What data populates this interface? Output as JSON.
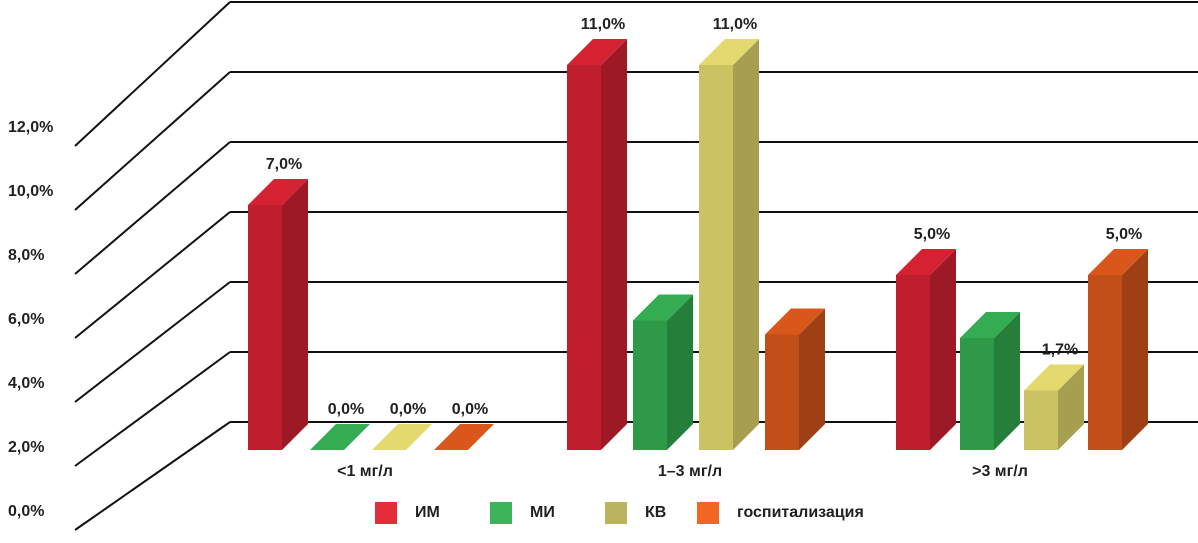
{
  "chart_data": {
    "type": "bar3d",
    "categories": [
      "<1 мг/л",
      "1–3 мг/л",
      ">3 мг/л"
    ],
    "series": [
      {
        "name": "ИМ",
        "color": "#be1e2d",
        "legend_color": "#e52d3a",
        "values": [
          7.0,
          11.0,
          5.0
        ],
        "value_labels": [
          "7,0%",
          "11,0%",
          "5,0%"
        ]
      },
      {
        "name": "МИ",
        "color": "#2e9a48",
        "legend_color": "#3cb55a",
        "values": [
          0.0,
          3.7,
          3.2
        ],
        "value_labels": [
          "0,0%",
          null,
          null
        ]
      },
      {
        "name": "КВ",
        "color": "#cbc262",
        "legend_color": "#bcb35e",
        "values": [
          0.0,
          11.0,
          1.7
        ],
        "value_labels": [
          "0,0%",
          "11,0%",
          "1,7%"
        ]
      },
      {
        "name": "госпитализация",
        "color": "#c24e18",
        "legend_color": "#f26522",
        "values": [
          0.0,
          3.3,
          5.0
        ],
        "value_labels": [
          "0,0%",
          null,
          "5,0%"
        ]
      }
    ],
    "ylim": [
      0,
      12
    ],
    "yticks": [
      {
        "value": 0,
        "label": "0,0%"
      },
      {
        "value": 2,
        "label": "2,0%"
      },
      {
        "value": 4,
        "label": "4,0%"
      },
      {
        "value": 6,
        "label": "6,0%"
      },
      {
        "value": 8,
        "label": "8,0%"
      },
      {
        "value": 10,
        "label": "10,0%"
      },
      {
        "value": 12,
        "label": "12,0%"
      }
    ],
    "grid": true
  }
}
